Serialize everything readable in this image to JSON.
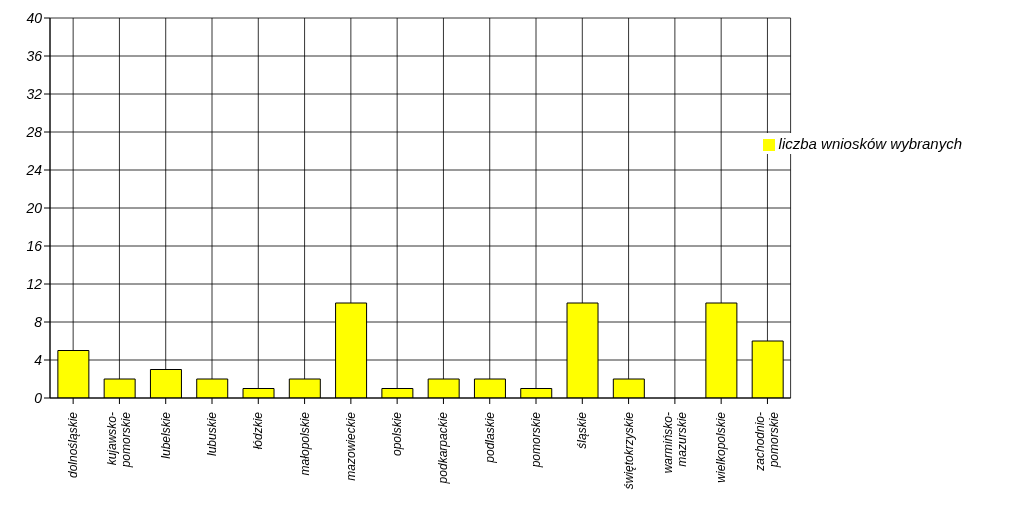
{
  "chart_data": {
    "type": "bar",
    "categories": [
      "dolnośląskie",
      "kujawsko-pomorskie",
      "lubelskie",
      "lubuskie",
      "łódzkie",
      "małopolskie",
      "mazowieckie",
      "opolskie",
      "podkarpackie",
      "podlaskie",
      "pomorskie",
      "śląskie",
      "świętokrzyskie",
      "warmińsko-mazurskie",
      "wielkopolskie",
      "zachodnio-pomorskie"
    ],
    "series": [
      {
        "name": "liczba wniosków wybranych",
        "color": "#ffff00",
        "values": [
          5,
          2,
          3,
          2,
          1,
          2,
          10,
          1,
          2,
          2,
          1,
          10,
          2,
          0,
          10,
          6
        ]
      }
    ],
    "ylim": [
      0,
      40
    ],
    "yticks": [
      0,
      4,
      8,
      12,
      16,
      20,
      24,
      28,
      32,
      36,
      40
    ],
    "grid": true,
    "legend": "top right"
  }
}
